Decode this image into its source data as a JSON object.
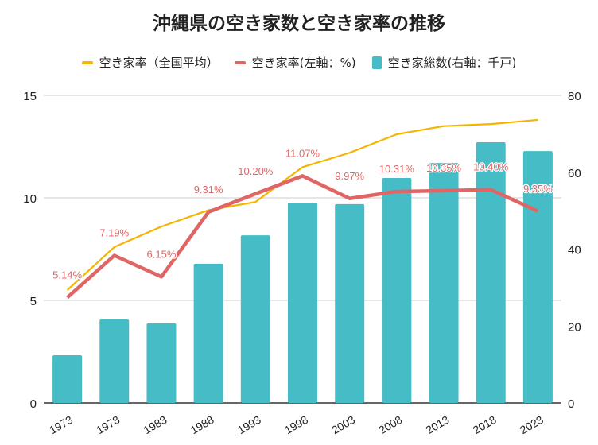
{
  "chart_data": {
    "type": "bar+line",
    "title": "沖縄県の空き家数と空き家率の推移",
    "categories": [
      "1973",
      "1978",
      "1983",
      "1988",
      "1993",
      "1998",
      "2003",
      "2008",
      "2013",
      "2018",
      "2023"
    ],
    "series": [
      {
        "name": "空き家総数(右軸：千戸)",
        "type": "bar",
        "axis": "right",
        "color": "#46bdc6",
        "values": [
          12.4,
          21.7,
          20.7,
          36.2,
          43.6,
          52.1,
          51.7,
          58.5,
          62.4,
          67.8,
          65.5
        ]
      },
      {
        "name": "空き家率（全国平均）",
        "type": "line",
        "axis": "left",
        "color": "#f4b400",
        "values": [
          5.5,
          7.6,
          8.6,
          9.4,
          9.8,
          11.5,
          12.2,
          13.1,
          13.5,
          13.6,
          13.8
        ]
      },
      {
        "name": "空き家率(左軸：%)",
        "type": "line",
        "axis": "left",
        "color": "#e06666",
        "values": [
          5.14,
          7.19,
          6.15,
          9.31,
          10.2,
          11.07,
          9.97,
          10.31,
          10.35,
          10.4,
          9.35
        ],
        "labels": [
          "5.14%",
          "7.19%",
          "6.15%",
          "9.31%",
          "10.20%",
          "11.07%",
          "9.97%",
          "10.31%",
          "10.35%",
          "10.40%",
          "9.35%"
        ]
      }
    ],
    "left_axis": {
      "range": [
        0,
        15
      ],
      "ticks": [
        "0",
        "5",
        "10",
        "15"
      ]
    },
    "right_axis": {
      "range": [
        0,
        80
      ],
      "ticks": [
        "0",
        "20",
        "40",
        "60",
        "80"
      ]
    },
    "grid": true,
    "legend_position": "top"
  }
}
